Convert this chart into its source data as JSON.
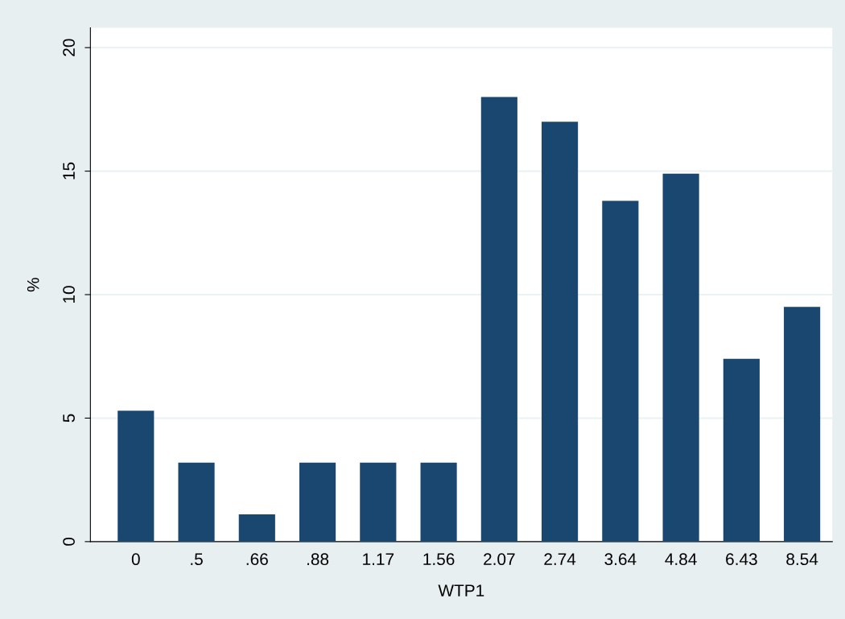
{
  "chart_data": {
    "type": "bar",
    "xlabel": "WTP1",
    "ylabel": "%",
    "categories": [
      "0",
      ".5",
      ".66",
      ".88",
      "1.17",
      "1.56",
      "2.07",
      "2.74",
      "3.64",
      "4.84",
      "6.43",
      "8.54"
    ],
    "values": [
      5.3,
      3.2,
      1.1,
      3.2,
      3.2,
      3.2,
      18.0,
      17.0,
      13.8,
      14.9,
      7.4,
      9.5
    ],
    "color": "#1a476f",
    "ylim": [
      0,
      20.8
    ],
    "yticks": [
      0,
      5,
      10,
      15,
      20
    ],
    "grid": "y"
  }
}
